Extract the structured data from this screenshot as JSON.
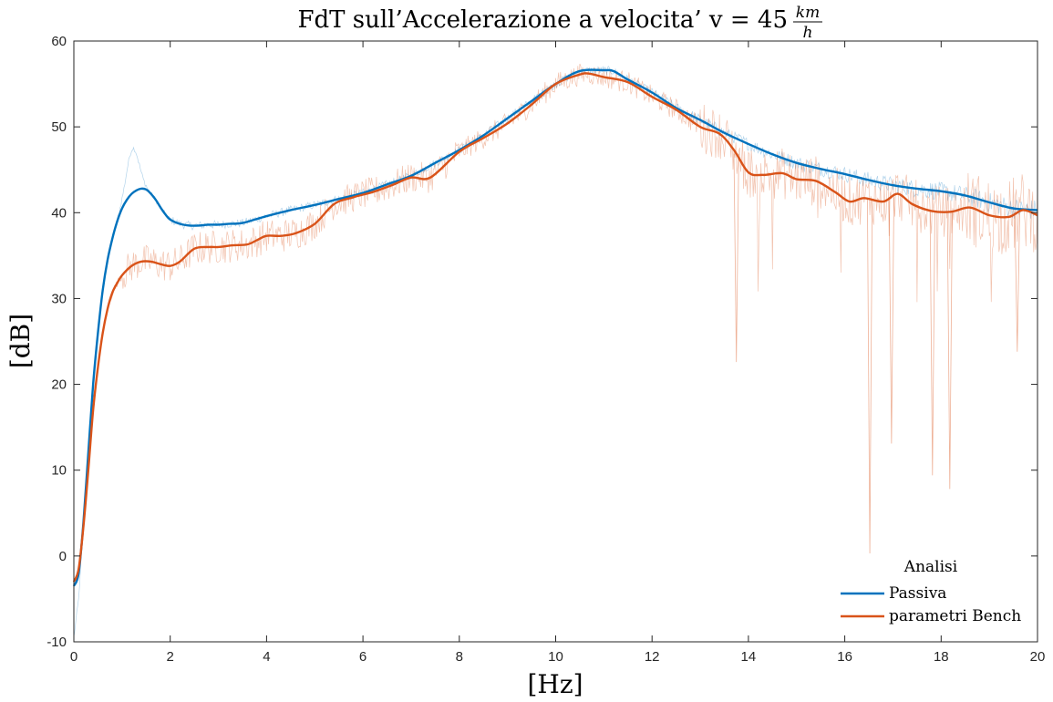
{
  "chart_data": {
    "type": "line",
    "title": {
      "prefix": "FdT sull’Accelerazione a velocita’ v = 45",
      "fraction_numerator": "km",
      "fraction_denominator": "h"
    },
    "xlabel": "[Hz]",
    "ylabel": "[dB]",
    "xlim": [
      0,
      20
    ],
    "ylim": [
      -10,
      60
    ],
    "xticks": [
      0,
      2,
      4,
      6,
      8,
      10,
      12,
      14,
      16,
      18,
      20
    ],
    "yticks": [
      -10,
      0,
      10,
      20,
      30,
      40,
      50,
      60
    ],
    "grid": false,
    "legend": {
      "title": "Analisi",
      "placement": "bottom-right",
      "entries": [
        "Passiva",
        "parametri Bench"
      ]
    },
    "series": [
      {
        "name": "Passiva",
        "color": "#0072BD",
        "x": [
          0,
          0.1,
          0.2,
          0.3,
          0.4,
          0.5,
          0.6,
          0.7,
          0.8,
          0.9,
          1.0,
          1.1,
          1.2,
          1.3,
          1.4,
          1.5,
          1.6,
          1.7,
          1.8,
          1.9,
          2.0,
          2.2,
          2.4,
          2.6,
          2.8,
          3.0,
          3.2,
          3.5,
          4.0,
          4.5,
          5.0,
          5.5,
          6.0,
          6.5,
          7.0,
          7.5,
          8.0,
          8.5,
          9.0,
          9.5,
          10.0,
          10.5,
          11.0,
          11.2,
          11.5,
          12.0,
          12.5,
          13.0,
          13.5,
          14.0,
          14.5,
          15.0,
          15.5,
          16.0,
          16.5,
          17.0,
          17.5,
          18.0,
          18.5,
          19.0,
          19.5,
          20.0
        ],
        "y": [
          -3.5,
          -2,
          4,
          12,
          20,
          26,
          31,
          34.5,
          37,
          39,
          40.5,
          41.5,
          42.2,
          42.6,
          42.8,
          42.7,
          42.2,
          41.5,
          40.6,
          39.8,
          39.2,
          38.7,
          38.5,
          38.5,
          38.6,
          38.6,
          38.7,
          38.8,
          39.6,
          40.3,
          40.9,
          41.6,
          42.3,
          43.3,
          44.3,
          45.8,
          47.3,
          49.0,
          51.0,
          53.0,
          55.0,
          56.5,
          56.6,
          56.5,
          55.5,
          54.0,
          52.2,
          50.8,
          49.3,
          48.0,
          46.8,
          45.8,
          45.1,
          44.5,
          43.8,
          43.2,
          42.8,
          42.5,
          42.0,
          41.2,
          40.5,
          40.3
        ]
      },
      {
        "name": "parametri Bench",
        "color": "#D95319",
        "x": [
          0,
          0.1,
          0.2,
          0.3,
          0.4,
          0.5,
          0.6,
          0.7,
          0.8,
          0.9,
          1.0,
          1.2,
          1.4,
          1.6,
          1.8,
          2.0,
          2.2,
          2.5,
          2.8,
          3.0,
          3.3,
          3.6,
          3.8,
          4.0,
          4.3,
          4.6,
          5.0,
          5.4,
          5.8,
          6.2,
          6.6,
          7.0,
          7.4,
          8.0,
          8.5,
          9.0,
          9.5,
          10.0,
          10.5,
          10.7,
          11.0,
          11.5,
          12.0,
          12.5,
          13.0,
          13.4,
          13.7,
          14.0,
          14.3,
          14.7,
          15.0,
          15.4,
          15.8,
          16.1,
          16.4,
          16.8,
          17.1,
          17.4,
          17.8,
          18.2,
          18.6,
          19.0,
          19.4,
          19.7,
          20.0
        ],
        "y": [
          -3.0,
          -1.5,
          3.5,
          10,
          17,
          22,
          26,
          28.8,
          30.7,
          31.8,
          32.7,
          33.8,
          34.3,
          34.3,
          34.0,
          33.8,
          34.3,
          35.8,
          36.0,
          36.0,
          36.2,
          36.3,
          36.8,
          37.3,
          37.3,
          37.6,
          38.7,
          41.0,
          41.8,
          42.4,
          43.2,
          44.1,
          44.1,
          47.1,
          48.7,
          50.4,
          52.6,
          55.0,
          56.1,
          56.2,
          55.8,
          55.2,
          53.5,
          52.0,
          50.0,
          49.2,
          47.3,
          44.7,
          44.4,
          44.6,
          43.9,
          43.7,
          42.4,
          41.3,
          41.7,
          41.3,
          42.2,
          41.0,
          40.2,
          40.1,
          40.6,
          39.7,
          39.5,
          40.3,
          39.7
        ]
      }
    ]
  }
}
